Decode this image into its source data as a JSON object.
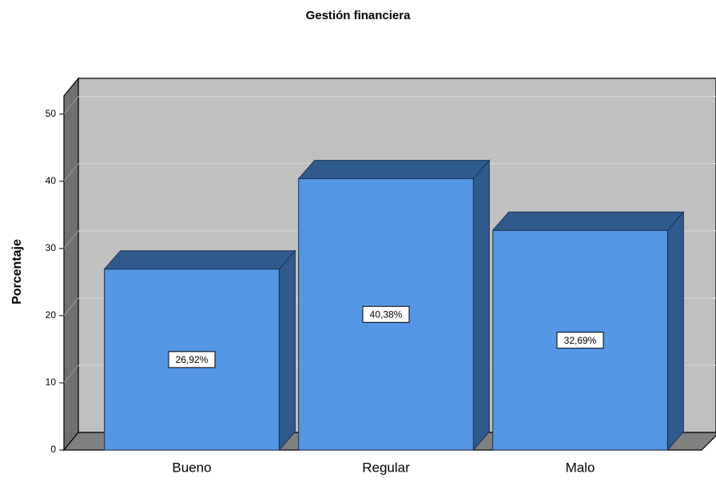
{
  "chart_data": {
    "type": "bar3d",
    "title": "Gestión financiera",
    "y_label": "Porcentaje",
    "categories": [
      "Bueno",
      "Regular",
      "Malo"
    ],
    "values": [
      26.92,
      40.38,
      32.69
    ],
    "value_labels": [
      "26,92%",
      "40,38%",
      "32,69%"
    ],
    "color": "#5596e6",
    "ylim": [
      0,
      52.7
    ],
    "yticks": [
      0,
      10,
      20,
      30,
      40,
      50
    ],
    "grid": true
  }
}
